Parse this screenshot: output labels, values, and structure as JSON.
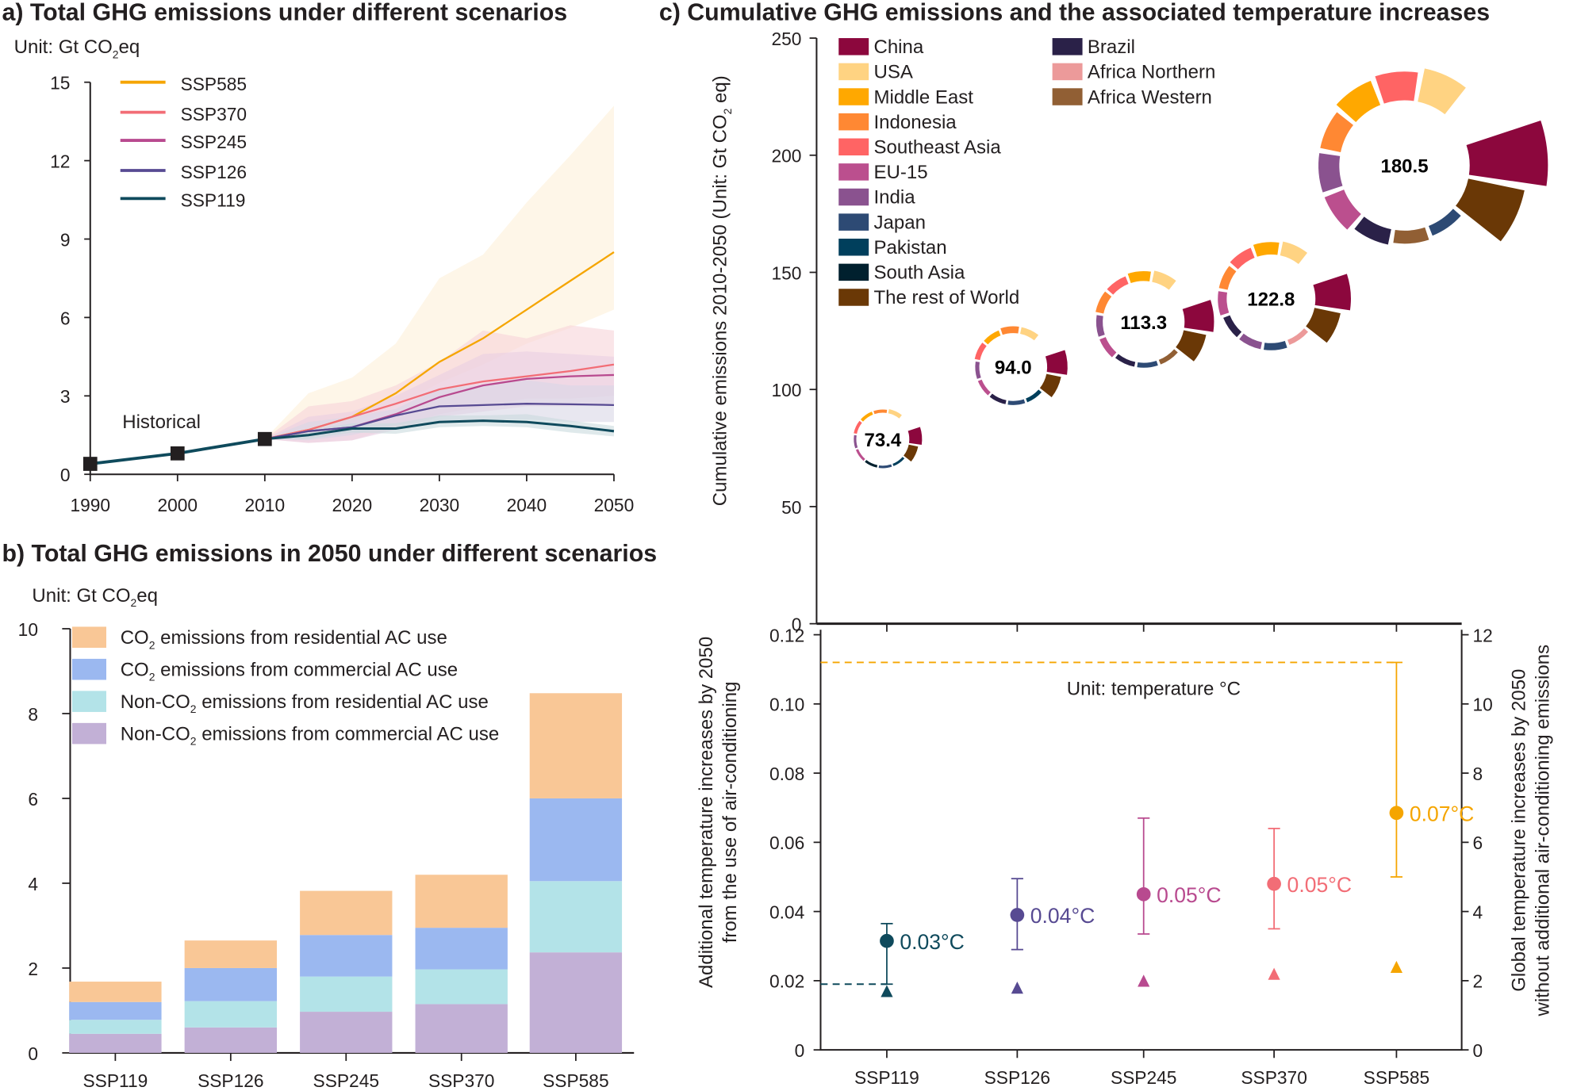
{
  "chart_data": [
    {
      "type": "line",
      "title": "a) Total GHG emissions under different scenarios",
      "unit": {
        "pre": "Unit: Gt CO",
        "sub": "2",
        "post": "eq"
      },
      "xlim": [
        1990,
        2050
      ],
      "ylim": [
        0,
        15
      ],
      "xticks": [
        1990,
        2000,
        2010,
        2020,
        2030,
        2040,
        2050
      ],
      "yticks": [
        0,
        3,
        6,
        9,
        12,
        15
      ],
      "annotation": "Historical",
      "legend_position": "top-left",
      "historical": {
        "x": [
          1990,
          2000,
          2010
        ],
        "y": [
          0.4,
          0.8,
          1.35
        ]
      },
      "x": [
        2010,
        2015,
        2020,
        2025,
        2030,
        2035,
        2040,
        2045,
        2050
      ],
      "series": [
        {
          "name": "SSP585",
          "color": "#f5a500",
          "band_color": "#fdf0d8",
          "values": [
            1.35,
            1.7,
            2.2,
            3.1,
            4.3,
            5.2,
            6.3,
            7.4,
            8.5
          ],
          "upper": [
            1.35,
            3.1,
            3.7,
            5.0,
            7.5,
            8.4,
            10.4,
            12.2,
            14.1
          ],
          "lower": [
            1.35,
            1.6,
            2.0,
            2.6,
            3.5,
            4.2,
            5.0,
            5.6,
            6.3
          ]
        },
        {
          "name": "SSP370",
          "color": "#f26d76",
          "band_color": "#f6d3d8",
          "values": [
            1.35,
            1.7,
            2.2,
            2.7,
            3.25,
            3.55,
            3.75,
            3.95,
            4.2
          ],
          "upper": [
            1.35,
            2.6,
            2.8,
            3.4,
            4.3,
            5.5,
            5.2,
            5.7,
            5.5
          ],
          "lower": [
            1.35,
            1.2,
            1.3,
            1.8,
            2.3,
            2.6,
            2.9,
            2.9,
            3.0
          ]
        },
        {
          "name": "SSP245",
          "color": "#b84a8f",
          "band_color": "#e9cfe2",
          "values": [
            1.35,
            1.65,
            1.8,
            2.3,
            2.95,
            3.4,
            3.65,
            3.75,
            3.8
          ],
          "upper": [
            1.35,
            2.2,
            2.4,
            3.0,
            3.8,
            4.6,
            4.7,
            4.6,
            4.5
          ],
          "lower": [
            1.35,
            1.2,
            1.3,
            1.7,
            2.2,
            2.4,
            2.6,
            2.6,
            2.7
          ]
        },
        {
          "name": "SSP126",
          "color": "#574a92",
          "band_color": "#d9d7e6",
          "values": [
            1.35,
            1.65,
            1.8,
            2.25,
            2.6,
            2.65,
            2.7,
            2.68,
            2.65
          ],
          "upper": [
            1.35,
            2.0,
            2.2,
            2.5,
            3.3,
            3.4,
            3.6,
            3.4,
            3.4
          ],
          "lower": [
            1.35,
            1.3,
            1.5,
            1.9,
            2.0,
            2.1,
            2.1,
            2.0,
            2.0
          ]
        },
        {
          "name": "SSP119",
          "color": "#0f4a5c",
          "band_color": "#c9dadd",
          "values": [
            1.35,
            1.5,
            1.75,
            1.75,
            2.0,
            2.05,
            2.0,
            1.85,
            1.65
          ],
          "upper": [
            1.35,
            1.7,
            1.95,
            1.95,
            2.25,
            2.25,
            2.3,
            2.05,
            1.85
          ],
          "lower": [
            1.35,
            1.35,
            1.6,
            1.55,
            1.8,
            1.85,
            1.8,
            1.6,
            1.45
          ]
        }
      ]
    },
    {
      "type": "bar",
      "stacked": true,
      "title": "b) Total GHG emissions in 2050 under different scenarios",
      "unit": {
        "pre": "Unit: Gt CO",
        "sub": "2",
        "post": "eq"
      },
      "ylim": [
        0,
        10
      ],
      "yticks": [
        0,
        2,
        4,
        6,
        8,
        10
      ],
      "categories": [
        "SSP119",
        "SSP126",
        "SSP245",
        "SSP370",
        "SSP585"
      ],
      "legend_position": "top-left",
      "series": [
        {
          "name": {
            "pre": "Non-CO",
            "sub": "2",
            "post": " emissions from commercial AC use"
          },
          "color": "#c2b0d6",
          "values": [
            0.45,
            0.6,
            0.97,
            1.15,
            2.37
          ]
        },
        {
          "name": {
            "pre": "Non-CO",
            "sub": "2",
            "post": " emissions from residential AC use"
          },
          "color": "#b3e3e8",
          "values": [
            0.33,
            0.62,
            0.83,
            0.82,
            1.68
          ]
        },
        {
          "name": {
            "pre": "CO",
            "sub": "2",
            "post": " emissions from commercial AC use"
          },
          "color": "#9bb8f0",
          "values": [
            0.42,
            0.78,
            0.98,
            0.98,
            1.95
          ]
        },
        {
          "name": {
            "pre": "CO",
            "sub": "2",
            "post": " emissions from residential AC use"
          },
          "color": "#f9c796",
          "values": [
            0.48,
            0.65,
            1.04,
            1.25,
            2.48
          ]
        }
      ]
    },
    {
      "type": "bubble-radial",
      "title": "c) Cumulative GHG emissions and the associated temperature increases",
      "ylabel": {
        "pre": "Cumulative emissions 2010-2050 (Unit: Gt CO",
        "sub": "2",
        "post": " eq)"
      },
      "ylim": [
        0,
        250
      ],
      "yticks": [
        0,
        50,
        100,
        150,
        200,
        250
      ],
      "legend_position": "top-left",
      "regions": [
        {
          "name": "China",
          "color": "#8c073d"
        },
        {
          "name": "USA",
          "color": "#ffd382"
        },
        {
          "name": "Middle East",
          "color": "#ffa800"
        },
        {
          "name": "Indonesia",
          "color": "#ff8833"
        },
        {
          "name": "Southeast Asia",
          "color": "#ff6464"
        },
        {
          "name": "EU-15",
          "color": "#bb4f8e"
        },
        {
          "name": "India",
          "color": "#8a528f"
        },
        {
          "name": "Japan",
          "color": "#2d4a74"
        },
        {
          "name": "Pakistan",
          "color": "#003f5c"
        },
        {
          "name": "South Asia",
          "color": "#00202e"
        },
        {
          "name": "The rest of World",
          "color": "#6a3806"
        },
        {
          "name": "Brazil",
          "color": "#2a2148"
        },
        {
          "name": "Africa Northern",
          "color": "#ec9a9a"
        },
        {
          "name": "Africa Western",
          "color": "#915f34"
        }
      ],
      "bubbles": [
        {
          "scenario": "SSP119",
          "total": "73.4",
          "value": 73.4,
          "segments": [
            [
              "China",
              12
            ],
            [
              "The rest of World",
              9
            ],
            [
              "Pakistan",
              2
            ],
            [
              "Japan",
              2
            ],
            [
              "South Asia",
              2
            ],
            [
              "EU-15",
              2
            ],
            [
              "India",
              2
            ],
            [
              "Southeast Asia",
              3
            ],
            [
              "Middle East",
              3
            ],
            [
              "Indonesia",
              3
            ],
            [
              "USA",
              4
            ]
          ]
        },
        {
          "scenario": "SSP126",
          "total": "94.0",
          "value": 94.0,
          "segments": [
            [
              "China",
              15
            ],
            [
              "The rest of World",
              11
            ],
            [
              "Pakistan",
              3
            ],
            [
              "Japan",
              3
            ],
            [
              "Brazil",
              3
            ],
            [
              "EU-15",
              3
            ],
            [
              "India",
              3
            ],
            [
              "Southeast Asia",
              4
            ],
            [
              "Middle East",
              4
            ],
            [
              "Indonesia",
              5
            ],
            [
              "USA",
              5
            ]
          ]
        },
        {
          "scenario": "SSP245",
          "total": "113.3",
          "value": 113.3,
          "segments": [
            [
              "China",
              18
            ],
            [
              "The rest of World",
              14
            ],
            [
              "Africa Western",
              3
            ],
            [
              "Japan",
              3
            ],
            [
              "Brazil",
              3
            ],
            [
              "EU-15",
              4
            ],
            [
              "India",
              4
            ],
            [
              "Indonesia",
              5
            ],
            [
              "Southeast Asia",
              5
            ],
            [
              "Middle East",
              6
            ],
            [
              "USA",
              7
            ]
          ]
        },
        {
          "scenario": "SSP370",
          "total": "122.8",
          "value": 122.8,
          "segments": [
            [
              "China",
              20
            ],
            [
              "The rest of World",
              15
            ],
            [
              "Africa Northern",
              3
            ],
            [
              "Japan",
              4
            ],
            [
              "India",
              4
            ],
            [
              "Brazil",
              4
            ],
            [
              "EU-15",
              5
            ],
            [
              "Indonesia",
              5
            ],
            [
              "Southeast Asia",
              6
            ],
            [
              "Middle East",
              7
            ],
            [
              "USA",
              8
            ]
          ]
        },
        {
          "scenario": "SSP585",
          "total": "180.5",
          "value": 180.5,
          "segments": [
            [
              "China",
              30
            ],
            [
              "The rest of World",
              22
            ],
            [
              "Japan",
              4
            ],
            [
              "Africa Western",
              5
            ],
            [
              "Brazil",
              6
            ],
            [
              "EU-15",
              8
            ],
            [
              "India",
              8
            ],
            [
              "Indonesia",
              8
            ],
            [
              "Middle East",
              10
            ],
            [
              "Southeast Asia",
              11
            ],
            [
              "USA",
              13
            ]
          ]
        }
      ]
    },
    {
      "type": "scatter",
      "unit_note": "Unit: temperature °C",
      "ylabel_left": [
        "Additional temperature increases by 2050",
        "from the use of air-conditioning"
      ],
      "ylabel_right": [
        "Global temperature increases by 2050",
        "without additional air-conditioning emissions"
      ],
      "ylim_left": [
        0,
        0.12
      ],
      "ylim_right": [
        0,
        12
      ],
      "yticks_left": [
        "0",
        "0.02",
        "0.04",
        "0.06",
        "0.08",
        "0.10",
        "0.12"
      ],
      "yticks_right": [
        "0",
        "2",
        "4",
        "6",
        "8",
        "10",
        "12"
      ],
      "categories": [
        "SSP119",
        "SSP126",
        "SSP245",
        "SSP370",
        "SSP585"
      ],
      "points": [
        {
          "scenario": "SSP119",
          "color": "#0f4a5c",
          "value": 0.0315,
          "low": 0.019,
          "high": 0.0365,
          "label": "0.03°C",
          "global_temp": 1.7
        },
        {
          "scenario": "SSP126",
          "color": "#574a92",
          "value": 0.039,
          "low": 0.029,
          "high": 0.0495,
          "label": "0.04°C",
          "global_temp": 1.8
        },
        {
          "scenario": "SSP245",
          "color": "#b84a8f",
          "value": 0.045,
          "low": 0.0335,
          "high": 0.067,
          "label": "0.05°C",
          "global_temp": 2.0
        },
        {
          "scenario": "SSP370",
          "color": "#f26d76",
          "value": 0.048,
          "low": 0.035,
          "high": 0.064,
          "label": "0.05°C",
          "global_temp": 2.2
        },
        {
          "scenario": "SSP585",
          "color": "#f5a500",
          "value": 0.0685,
          "low": 0.05,
          "high": 0.112,
          "label": "0.07°C",
          "global_temp": 2.4
        }
      ],
      "reference_lines": [
        {
          "value": 0.112,
          "color": "#f5a500",
          "style": "dashed"
        },
        {
          "value": 0.019,
          "color": "#0f4a5c",
          "style": "dashed"
        }
      ]
    }
  ]
}
